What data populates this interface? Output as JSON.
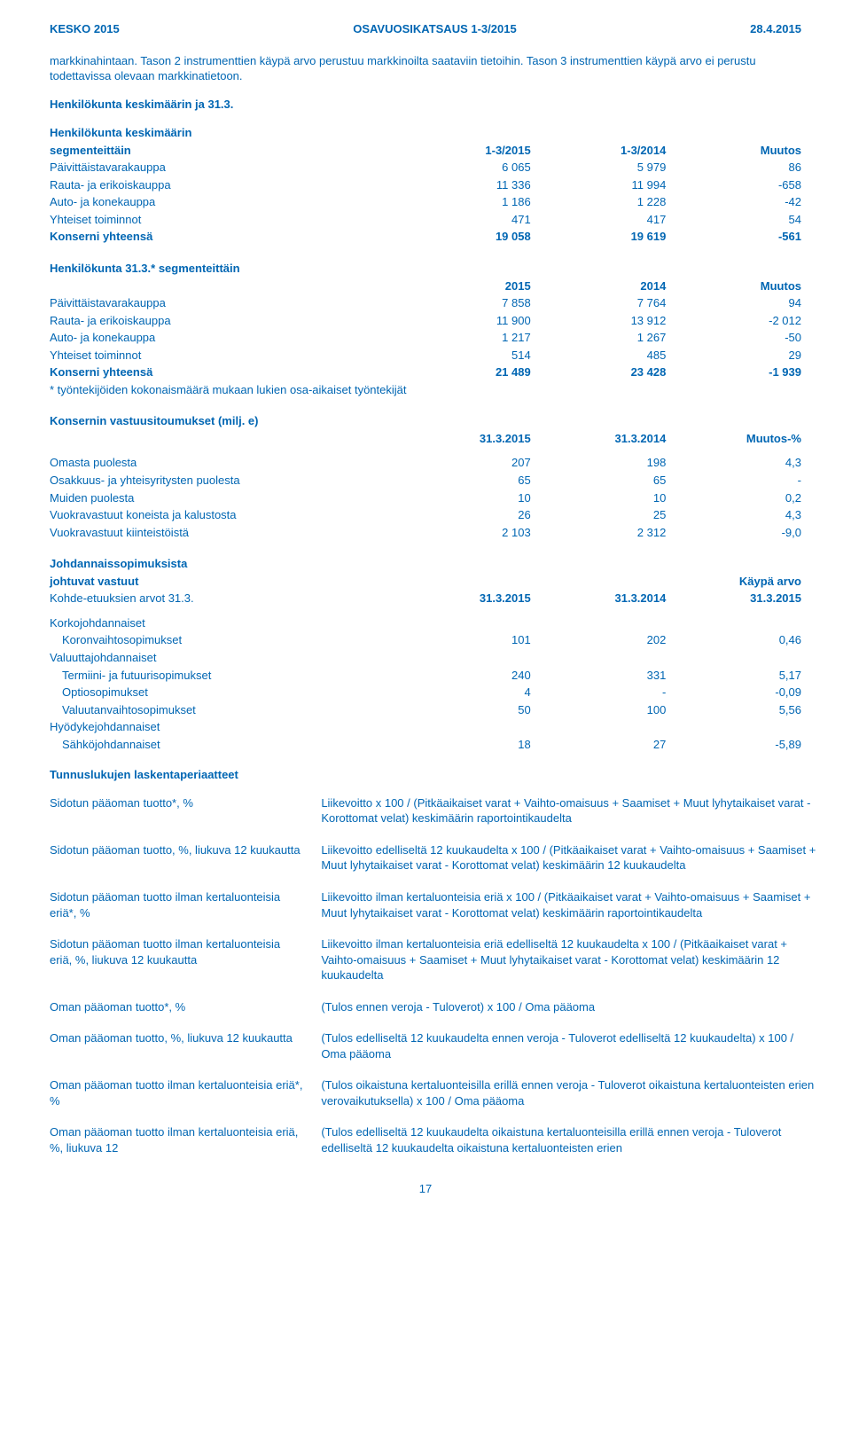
{
  "header": {
    "left": "KESKO 2015",
    "center": "OSAVUOSIKATSAUS 1-3/2015",
    "right": "28.4.2015"
  },
  "intro": "markkinahintaan. Tason 2 instrumenttien käypä arvo perustuu markkinoilta saataviin tietoihin. Tason 3 instrumenttien käypä arvo ei perustu todettavissa olevaan markkinatietoon.",
  "section1_title": "Henkilökunta keskimäärin ja 31.3.",
  "hk_seg": {
    "title1": "Henkilökunta keskimäärin",
    "title2": "segmenteittäin",
    "cols": [
      "1-3/2015",
      "1-3/2014",
      "Muutos"
    ],
    "rows": [
      {
        "label": "Päivittäistavarakauppa",
        "v": [
          "6 065",
          "5 979",
          "86"
        ]
      },
      {
        "label": "Rauta- ja erikoiskauppa",
        "v": [
          "11 336",
          "11 994",
          "-658"
        ]
      },
      {
        "label": "Auto- ja konekauppa",
        "v": [
          "1 186",
          "1 228",
          "-42"
        ]
      },
      {
        "label": "Yhteiset toiminnot",
        "v": [
          "471",
          "417",
          "54"
        ]
      }
    ],
    "total": {
      "label": "Konserni yhteensä",
      "v": [
        "19 058",
        "19 619",
        "-561"
      ]
    }
  },
  "hk_313": {
    "title": "Henkilökunta 31.3.* segmenteittäin",
    "cols": [
      "2015",
      "2014",
      "Muutos"
    ],
    "rows": [
      {
        "label": "Päivittäistavarakauppa",
        "v": [
          "7 858",
          "7 764",
          "94"
        ]
      },
      {
        "label": "Rauta- ja erikoiskauppa",
        "v": [
          "11 900",
          "13 912",
          "-2 012"
        ]
      },
      {
        "label": "Auto- ja konekauppa",
        "v": [
          "1 217",
          "1 267",
          "-50"
        ]
      },
      {
        "label": "Yhteiset toiminnot",
        "v": [
          "514",
          "485",
          "29"
        ]
      }
    ],
    "total": {
      "label": "Konserni yhteensä",
      "v": [
        "21 489",
        "23 428",
        "-1 939"
      ]
    },
    "note": "* työntekijöiden kokonaismäärä mukaan lukien osa-aikaiset työntekijät"
  },
  "vastuu": {
    "title": "Konsernin vastuusitoumukset (milj. e)",
    "cols": [
      "31.3.2015",
      "31.3.2014",
      "Muutos-%"
    ],
    "rows": [
      {
        "label": "Omasta puolesta",
        "v": [
          "207",
          "198",
          "4,3"
        ]
      },
      {
        "label": "Osakkuus- ja yhteisyritysten puolesta",
        "v": [
          "65",
          "65",
          "-"
        ]
      },
      {
        "label": "Muiden puolesta",
        "v": [
          "10",
          "10",
          "0,2"
        ]
      },
      {
        "label": "Vuokravastuut koneista ja kalustosta",
        "v": [
          "26",
          "25",
          "4,3"
        ]
      },
      {
        "label": "Vuokravastuut kiinteistöistä",
        "v": [
          "2 103",
          "2 312",
          "-9,0"
        ]
      }
    ]
  },
  "johdannais": {
    "title1": "Johdannaissopimuksista",
    "title2": "johtuvat vastuut",
    "kohde_label": "Kohde-etuuksien arvot 31.3.",
    "cols": [
      "31.3.2015",
      "31.3.2014",
      "31.3.2015"
    ],
    "kaypa": "Käypä arvo",
    "groups": [
      {
        "head": "Korkojohdannaiset",
        "rows": [
          {
            "label": "Koronvaihtosopimukset",
            "v": [
              "101",
              "202",
              "0,46"
            ]
          }
        ]
      },
      {
        "head": "Valuuttajohdannaiset",
        "rows": [
          {
            "label": "Termiini- ja futuurisopimukset",
            "v": [
              "240",
              "331",
              "5,17"
            ]
          },
          {
            "label": "Optiosopimukset",
            "v": [
              "4",
              "-",
              "-0,09"
            ]
          },
          {
            "label": "Valuutanvaihtosopimukset",
            "v": [
              "50",
              "100",
              "5,56"
            ]
          }
        ]
      },
      {
        "head": "Hyödykejohdannaiset",
        "rows": [
          {
            "label": "Sähköjohdannaiset",
            "v": [
              "18",
              "27",
              "-5,89"
            ]
          }
        ]
      }
    ]
  },
  "tunnus": {
    "title": "Tunnuslukujen laskentaperiaatteet",
    "defs": [
      {
        "term": "Sidotun pääoman tuotto*, %",
        "desc": "Liikevoitto x 100  / (Pitkäaikaiset varat + Vaihto-omaisuus + Saamiset + Muut lyhytaikaiset varat - Korottomat velat) keskimäärin raportointikaudelta"
      },
      {
        "term": "Sidotun pääoman tuotto, %, liukuva 12 kuukautta",
        "desc": "Liikevoitto edelliseltä 12 kuukaudelta x 100 / (Pitkäaikaiset varat + Vaihto-omaisuus + Saamiset + Muut lyhytaikaiset varat - Korottomat velat) keskimäärin 12 kuukaudelta"
      },
      {
        "term": "Sidotun pääoman tuotto ilman kertaluonteisia eriä*, %",
        "desc": "Liikevoitto ilman kertaluonteisia eriä x 100 / (Pitkäaikaiset varat + Vaihto-omaisuus + Saamiset + Muut lyhytaikaiset varat - Korottomat velat) keskimäärin raportointikaudelta"
      },
      {
        "term": "Sidotun pääoman tuotto ilman kertaluonteisia eriä, %, liukuva 12 kuukautta",
        "desc": "Liikevoitto ilman kertaluonteisia eriä edelliseltä 12 kuukaudelta x 100 / (Pitkäaikaiset varat + Vaihto-omaisuus + Saamiset + Muut lyhytaikaiset varat - Korottomat velat) keskimäärin 12 kuukaudelta"
      },
      {
        "term": "Oman pääoman tuotto*, %",
        "desc": "(Tulos ennen veroja - Tuloverot) x 100 / Oma pääoma"
      },
      {
        "term": "Oman pääoman tuotto, %, liukuva 12 kuukautta",
        "desc": "(Tulos edelliseltä 12 kuukaudelta ennen veroja - Tuloverot edelliseltä 12 kuukaudelta) x 100 / Oma pääoma"
      },
      {
        "term": "Oman pääoman tuotto ilman kertaluonteisia eriä*, %",
        "desc": "(Tulos oikaistuna kertaluonteisilla erillä ennen veroja - Tuloverot oikaistuna kertaluonteisten erien verovaikutuksella) x 100 / Oma pääoma"
      },
      {
        "term": "Oman pääoman tuotto ilman kertaluonteisia eriä, %, liukuva 12",
        "desc": "(Tulos edelliseltä 12 kuukaudelta oikaistuna kertaluonteisilla erillä ennen veroja - Tuloverot edelliseltä 12 kuukaudelta oikaistuna kertaluonteisten erien"
      }
    ]
  },
  "page_no": "17"
}
